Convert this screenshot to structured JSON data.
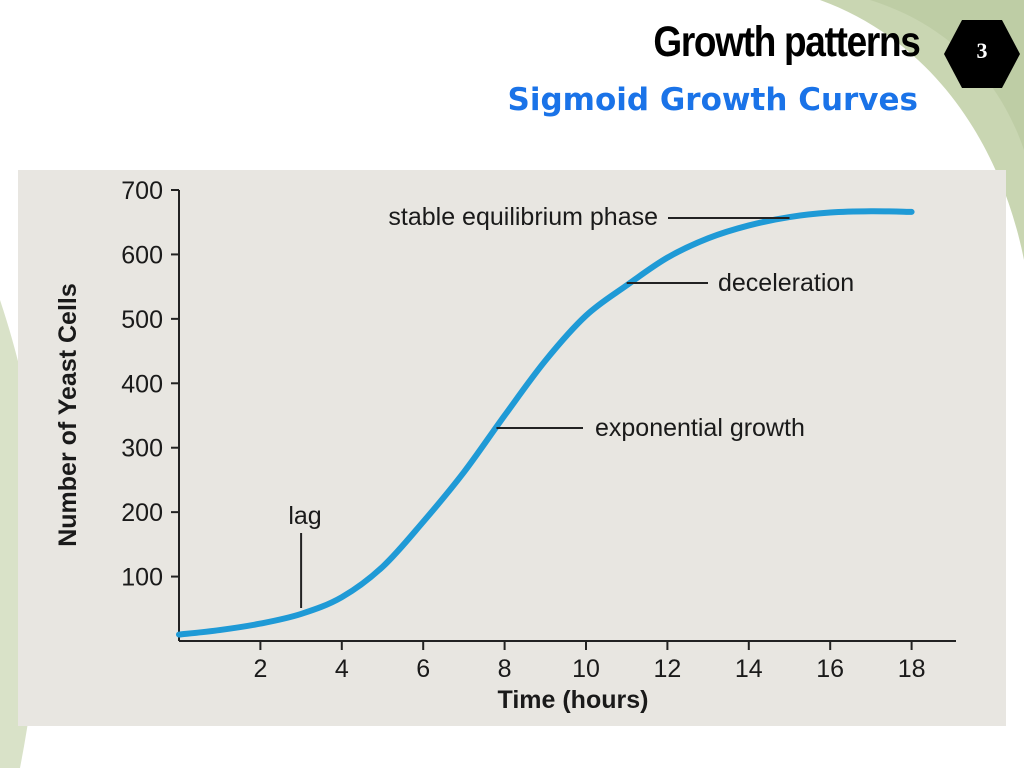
{
  "slide": {
    "title": "Growth patterns",
    "subtitle": "Sigmoid Growth Curves",
    "page_number": "3",
    "colors": {
      "title": "#000000",
      "subtitle": "#1a73e8",
      "badge": "#000000",
      "panel": "#e8e6e1",
      "curve": "#1f9ad6",
      "decor_green": "#c9d6b2"
    }
  },
  "chart_data": {
    "type": "line",
    "title": "",
    "xlabel": "Time (hours)",
    "ylabel": "Number of Yeast Cells",
    "xlim": [
      0,
      19
    ],
    "ylim": [
      0,
      700
    ],
    "x_ticks": [
      2,
      4,
      6,
      8,
      10,
      12,
      14,
      16,
      18
    ],
    "y_ticks": [
      100,
      200,
      300,
      400,
      500,
      600,
      700
    ],
    "grid": false,
    "legend": "none",
    "series": [
      {
        "x": [
          0,
          1,
          2,
          3,
          4,
          5,
          6,
          7,
          8,
          9,
          10,
          11,
          12,
          13,
          14,
          15,
          16,
          17,
          18
        ],
        "values": [
          10,
          17,
          27,
          42,
          68,
          115,
          185,
          262,
          350,
          435,
          505,
          552,
          595,
          625,
          645,
          658,
          665,
          667,
          666
        ]
      }
    ],
    "annotations": [
      {
        "text": "stable equilibrium phase",
        "x": 15,
        "y": 657
      },
      {
        "text": "deceleration",
        "x": 11,
        "y": 553
      },
      {
        "text": "exponential growth",
        "x": 7.8,
        "y": 330
      },
      {
        "text": "lag",
        "x": 3,
        "y": 42
      }
    ]
  }
}
